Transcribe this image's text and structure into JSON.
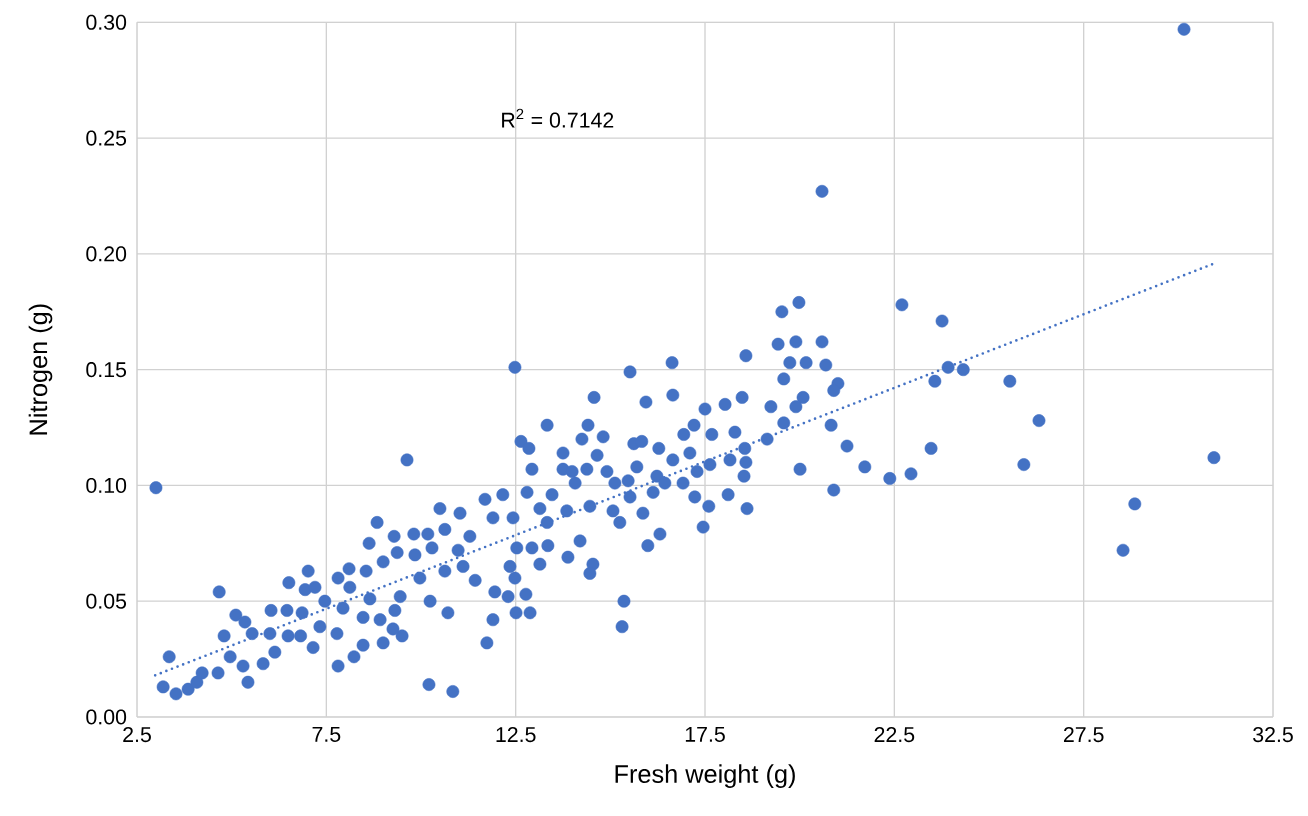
{
  "chart_data": {
    "type": "scatter",
    "xlabel": "Fresh weight (g)",
    "ylabel": "Nitrogen (g)",
    "annotations": [
      "R$^{2}$ = 0.7142"
    ],
    "xlim": [
      2.5,
      32.5
    ],
    "xticks": [
      2.5,
      7.5,
      12.5,
      17.5,
      22.5,
      27.5,
      32.5
    ],
    "ylim": [
      0,
      0.3
    ],
    "yticks": [
      {
        "value": 0,
        "label": "0.00"
      },
      {
        "value": 0.05,
        "label": "0.05"
      },
      {
        "value": 0.1,
        "label": "0.10"
      },
      {
        "value": 0.15,
        "label": "0.15"
      },
      {
        "value": 0.2,
        "label": "0.20"
      },
      {
        "value": 0.25,
        "label": "0.25"
      },
      {
        "value": 0.3,
        "label": "0.30"
      }
    ],
    "grid": true,
    "series": [
      {
        "color": "#4472c4",
        "marker": "circle",
        "x": [
          30.15,
          20.59,
          22.7,
          23.76,
          23.92,
          24.32,
          23.57,
          25.55,
          26.32,
          23.47,
          25.92,
          30.94,
          22.94,
          22.38,
          21.72,
          21.25,
          20.9,
          20.83,
          28.85,
          28.54,
          19.98,
          19.53,
          19.43,
          19.9,
          20.59,
          19.74,
          20.17,
          20.69,
          19.58,
          21.01,
          20.9,
          18.58,
          20.09,
          19.9,
          19.24,
          19.58,
          19.14,
          18.55,
          18.58,
          18.53,
          18.61,
          20.01,
          12.48,
          15.52,
          16.63,
          16.65,
          14.57,
          15.94,
          17.5,
          18.03,
          18.48,
          13.33,
          14.41,
          12.64,
          12.85,
          12.93,
          14.25,
          14.81,
          15.62,
          15.83,
          16.28,
          16.94,
          17.21,
          17.68,
          18.29,
          13.75,
          14.65,
          13.75,
          13.99,
          14.38,
          14.91,
          14.07,
          15.12,
          15.7,
          15.47,
          16.23,
          16.65,
          17.1,
          17.63,
          18.16,
          16.92,
          17.29,
          11.69,
          12.16,
          12.8,
          13.46,
          11.9,
          12.43,
          13.14,
          13.33,
          13.85,
          14.46,
          14.2,
          13.88,
          14.54,
          14.46,
          13.14,
          12.53,
          12.93,
          13.35,
          12.35,
          12.48,
          11.95,
          12.3,
          12.77,
          12.51,
          12.88,
          11.9,
          11.74,
          15.36,
          15.31,
          15.99,
          16.31,
          17.23,
          17.45,
          17.6,
          18.11,
          15.07,
          15.25,
          15.86,
          15.52,
          16.13,
          16.44,
          3.0,
          4.67,
          3.35,
          3.19,
          3.53,
          3.85,
          4.08,
          4.22,
          4.64,
          5.43,
          4.8,
          5.11,
          5.35,
          5.54,
          4.96,
          5.3,
          5.83,
          6.01,
          6.04,
          6.46,
          6.86,
          6.51,
          6.94,
          7.2,
          7.02,
          6.49,
          6.82,
          6.14,
          7.15,
          7.46,
          7.33,
          7.78,
          7.81,
          8.23,
          8.47,
          9.0,
          9.5,
          8.92,
          9.26,
          7.81,
          8.1,
          8.12,
          7.94,
          8.47,
          8.65,
          8.55,
          8.84,
          8.63,
          9.0,
          9.29,
          9.37,
          9.31,
          9.45,
          9.63,
          10.21,
          10.84,
          10.5,
          9.81,
          10.18,
          9.84,
          9.97,
          10.24,
          10.71,
          10.29,
          10.63,
          11.03,
          11.29,
          11.11,
          11.43,
          10.98,
          10.63
        ],
        "values": [
          0.297,
          0.227,
          0.178,
          0.171,
          0.151,
          0.15,
          0.145,
          0.145,
          0.128,
          0.116,
          0.109,
          0.112,
          0.105,
          0.103,
          0.108,
          0.117,
          0.098,
          0.126,
          0.092,
          0.072,
          0.179,
          0.175,
          0.161,
          0.162,
          0.162,
          0.153,
          0.153,
          0.152,
          0.146,
          0.144,
          0.141,
          0.156,
          0.138,
          0.134,
          0.134,
          0.127,
          0.12,
          0.116,
          0.11,
          0.104,
          0.09,
          0.107,
          0.151,
          0.149,
          0.153,
          0.139,
          0.138,
          0.136,
          0.133,
          0.135,
          0.138,
          0.126,
          0.126,
          0.119,
          0.116,
          0.107,
          0.12,
          0.121,
          0.118,
          0.119,
          0.116,
          0.122,
          0.126,
          0.122,
          0.123,
          0.114,
          0.113,
          0.107,
          0.106,
          0.107,
          0.106,
          0.101,
          0.101,
          0.108,
          0.102,
          0.104,
          0.111,
          0.114,
          0.109,
          0.111,
          0.101,
          0.106,
          0.094,
          0.096,
          0.097,
          0.096,
          0.086,
          0.086,
          0.09,
          0.084,
          0.089,
          0.091,
          0.076,
          0.069,
          0.066,
          0.062,
          0.066,
          0.073,
          0.073,
          0.074,
          0.065,
          0.06,
          0.054,
          0.052,
          0.053,
          0.045,
          0.045,
          0.042,
          0.032,
          0.05,
          0.039,
          0.074,
          0.079,
          0.095,
          0.082,
          0.091,
          0.096,
          0.089,
          0.084,
          0.088,
          0.095,
          0.097,
          0.101,
          0.099,
          0.054,
          0.026,
          0.013,
          0.01,
          0.012,
          0.015,
          0.019,
          0.019,
          0.015,
          0.035,
          0.044,
          0.041,
          0.036,
          0.026,
          0.022,
          0.023,
          0.036,
          0.046,
          0.046,
          0.045,
          0.058,
          0.055,
          0.056,
          0.063,
          0.035,
          0.035,
          0.028,
          0.03,
          0.05,
          0.039,
          0.036,
          0.022,
          0.026,
          0.031,
          0.032,
          0.035,
          0.042,
          0.038,
          0.06,
          0.064,
          0.056,
          0.047,
          0.043,
          0.051,
          0.063,
          0.084,
          0.075,
          0.067,
          0.078,
          0.071,
          0.046,
          0.052,
          0.111,
          0.014,
          0.011,
          0.09,
          0.079,
          0.079,
          0.07,
          0.06,
          0.05,
          0.045,
          0.073,
          0.081,
          0.088,
          0.078,
          0.065,
          0.059,
          0.072,
          0.063
        ]
      },
      {
        "type": "line",
        "color": "#4472c4",
        "marker": "none",
        "line_style": "dotted",
        "x": [
          2.98,
          30.97
        ],
        "values": [
          0.018,
          0.196
        ]
      }
    ]
  }
}
